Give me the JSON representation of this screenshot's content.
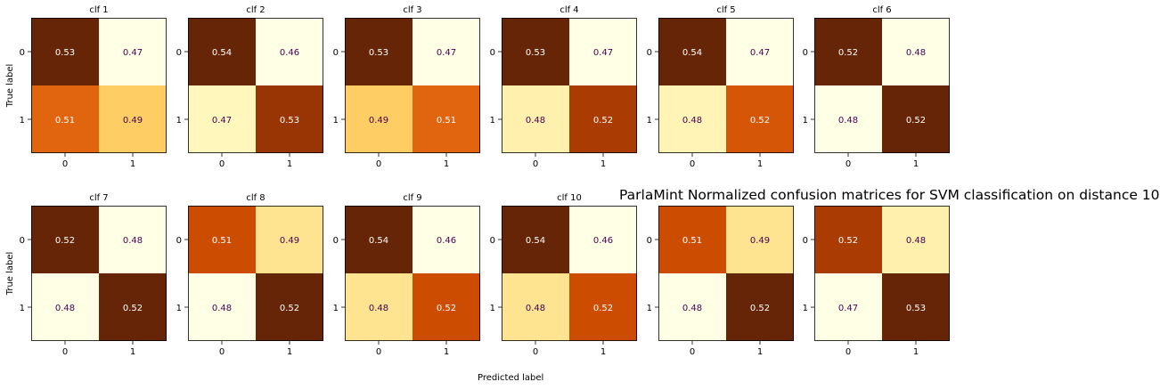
{
  "figure": {
    "suptitle": "ParlaMint Normalized confusion matrices for SVM classification on distance 10",
    "xlabel": "Predicted label",
    "ylabel": "True label"
  },
  "chart_data": {
    "type": "heatmap",
    "colormap": "YlOrBr",
    "xticks": [
      "0",
      "1"
    ],
    "yticks": [
      "0",
      "1"
    ],
    "matrices": [
      {
        "title": "clf 1",
        "values": [
          [
            0.53,
            0.47
          ],
          [
            0.51,
            0.49
          ]
        ]
      },
      {
        "title": "clf 2",
        "values": [
          [
            0.54,
            0.46
          ],
          [
            0.47,
            0.53
          ]
        ]
      },
      {
        "title": "clf 3",
        "values": [
          [
            0.53,
            0.47
          ],
          [
            0.49,
            0.51
          ]
        ]
      },
      {
        "title": "clf 4",
        "values": [
          [
            0.53,
            0.47
          ],
          [
            0.48,
            0.52
          ]
        ]
      },
      {
        "title": "clf 5",
        "values": [
          [
            0.54,
            0.47
          ],
          [
            0.48,
            0.52
          ]
        ]
      },
      {
        "title": "clf 6",
        "values": [
          [
            0.52,
            0.48
          ],
          [
            0.48,
            0.52
          ]
        ]
      },
      {
        "title": "clf 7",
        "values": [
          [
            0.52,
            0.48
          ],
          [
            0.48,
            0.52
          ]
        ]
      },
      {
        "title": "clf 8",
        "values": [
          [
            0.51,
            0.49
          ],
          [
            0.48,
            0.52
          ]
        ]
      },
      {
        "title": "clf 9",
        "values": [
          [
            0.54,
            0.46
          ],
          [
            0.48,
            0.52
          ]
        ]
      },
      {
        "title": "clf 10",
        "values": [
          [
            0.54,
            0.46
          ],
          [
            0.48,
            0.52
          ]
        ]
      },
      {
        "title": "",
        "values": [
          [
            0.51,
            0.49
          ],
          [
            0.48,
            0.52
          ]
        ]
      },
      {
        "title": "",
        "values": [
          [
            0.52,
            0.48
          ],
          [
            0.47,
            0.53
          ]
        ]
      }
    ]
  }
}
